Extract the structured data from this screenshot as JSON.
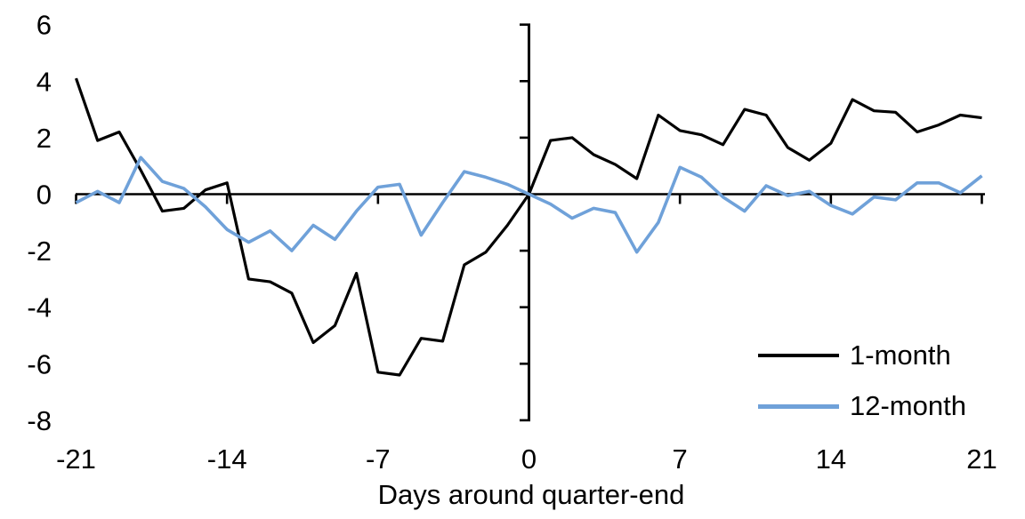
{
  "chart_data": {
    "type": "line",
    "title": "",
    "xlabel": "Days around quarter-end",
    "ylabel": "",
    "xlim": [
      -21,
      21
    ],
    "ylim": [
      -8,
      6
    ],
    "xticks": [
      -21,
      -14,
      -7,
      0,
      7,
      14,
      21
    ],
    "yticks": [
      6,
      4,
      2,
      0,
      -2,
      -4,
      -6,
      -8
    ],
    "grid": false,
    "legend_position": "inside-lower-right",
    "axis_color": "#000000",
    "x": [
      -21,
      -20,
      -19,
      -18,
      -17,
      -16,
      -15,
      -14,
      -13,
      -12,
      -11,
      -10,
      -9,
      -8,
      -7,
      -6,
      -5,
      -4,
      -3,
      -2,
      -1,
      0,
      1,
      2,
      3,
      4,
      5,
      6,
      7,
      8,
      9,
      10,
      11,
      12,
      13,
      14,
      15,
      16,
      17,
      18,
      19,
      20,
      21
    ],
    "series": [
      {
        "name": "1-month",
        "color": "#000000",
        "values": [
          4.1,
          1.9,
          2.2,
          0.85,
          -0.6,
          -0.5,
          0.15,
          0.4,
          -3.0,
          -3.1,
          -3.5,
          -5.25,
          -4.65,
          -2.8,
          -6.3,
          -6.4,
          -5.1,
          -5.2,
          -2.5,
          -2.05,
          -1.1,
          0.0,
          1.9,
          2.0,
          1.4,
          1.05,
          0.55,
          2.8,
          2.25,
          2.1,
          1.75,
          3.0,
          2.8,
          1.65,
          1.2,
          1.8,
          3.35,
          2.95,
          2.9,
          2.2,
          2.45,
          2.8,
          2.7
        ]
      },
      {
        "name": "12-month",
        "color": "#6FA1D9",
        "values": [
          -0.3,
          0.1,
          -0.3,
          1.3,
          0.45,
          0.2,
          -0.45,
          -1.25,
          -1.7,
          -1.3,
          -2.0,
          -1.1,
          -1.6,
          -0.6,
          0.25,
          0.35,
          -1.45,
          -0.3,
          0.8,
          0.6,
          0.35,
          0.0,
          -0.35,
          -0.85,
          -0.5,
          -0.65,
          -2.05,
          -1.0,
          0.95,
          0.6,
          -0.1,
          -0.6,
          0.3,
          -0.05,
          0.1,
          -0.4,
          -0.7,
          -0.1,
          -0.2,
          0.4,
          0.4,
          0.05,
          0.65
        ]
      }
    ]
  }
}
